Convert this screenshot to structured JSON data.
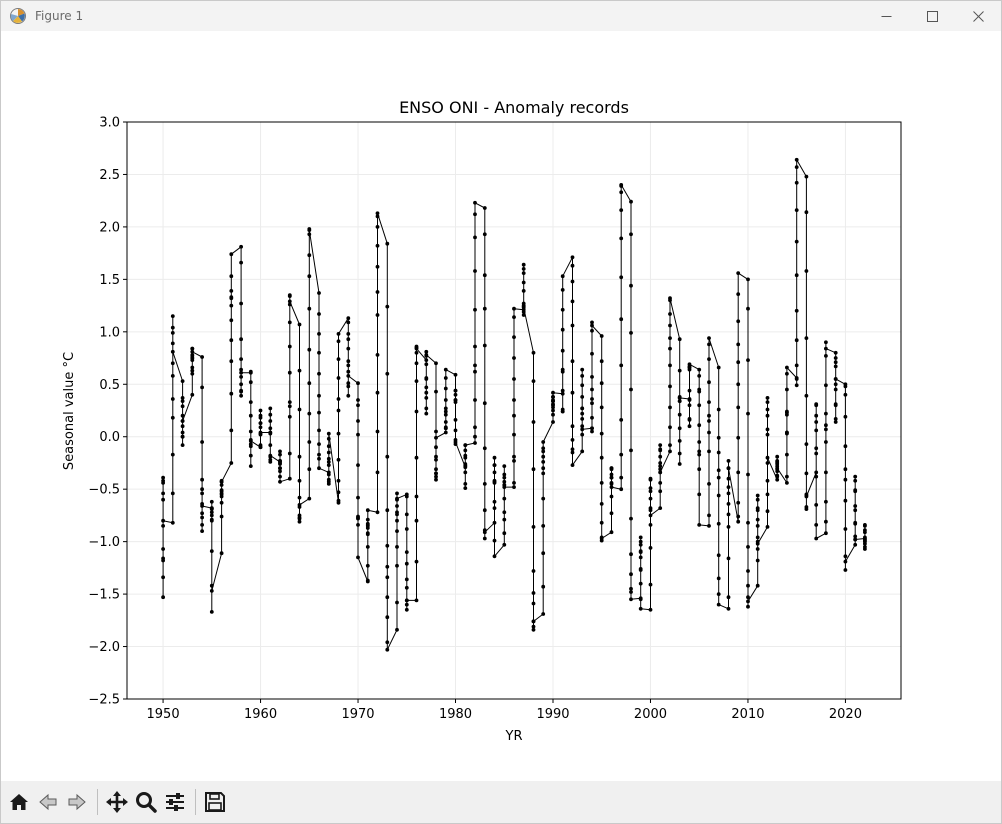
{
  "window": {
    "title": "Figure 1",
    "minimize_glyph": "—",
    "maximize_glyph": "☐",
    "close_glyph": "✕"
  },
  "toolbar": {
    "buttons": [
      {
        "name": "home-icon",
        "tooltip": "Home"
      },
      {
        "name": "back-icon",
        "tooltip": "Back"
      },
      {
        "name": "forward-icon",
        "tooltip": "Forward"
      },
      {
        "name": "pan-icon",
        "tooltip": "Pan"
      },
      {
        "name": "zoom-icon",
        "tooltip": "Zoom"
      },
      {
        "name": "configure-icon",
        "tooltip": "Configure subplots"
      },
      {
        "name": "save-icon",
        "tooltip": "Save"
      }
    ]
  },
  "chart_data": {
    "type": "line",
    "title": "ENSO ONI - Anomaly records",
    "xlabel": "YR",
    "ylabel": "Seasonal value °C",
    "xlim": [
      1946.3,
      2025.7
    ],
    "ylim": [
      -2.5,
      3.0
    ],
    "xticks": [
      1950,
      1960,
      1970,
      1980,
      1990,
      2000,
      2010,
      2020
    ],
    "yticks": [
      -2.5,
      -2.0,
      -1.5,
      -1.0,
      -0.5,
      0.0,
      0.5,
      1.0,
      1.5,
      2.0,
      2.5,
      3.0
    ],
    "ytick_labels": [
      "−2.5",
      "−2.0",
      "−1.5",
      "−1.0",
      "−0.5",
      "0.0",
      "0.5",
      "1.0",
      "1.5",
      "2.0",
      "2.5",
      "3.0"
    ],
    "grid": true,
    "line_color": "#000000",
    "marker": "circle",
    "x_is_year": true,
    "years": [
      1950,
      1951,
      1952,
      1953,
      1954,
      1955,
      1956,
      1957,
      1958,
      1959,
      1960,
      1961,
      1962,
      1963,
      1964,
      1965,
      1966,
      1967,
      1968,
      1969,
      1970,
      1971,
      1972,
      1973,
      1974,
      1975,
      1976,
      1977,
      1978,
      1979,
      1980,
      1981,
      1982,
      1983,
      1984,
      1985,
      1986,
      1987,
      1988,
      1989,
      1990,
      1991,
      1992,
      1993,
      1994,
      1995,
      1996,
      1997,
      1998,
      1999,
      2000,
      2001,
      2002,
      2003,
      2004,
      2005,
      2006,
      2007,
      2008,
      2009,
      2010,
      2011,
      2012,
      2013,
      2014,
      2015,
      2016,
      2017,
      2018,
      2019,
      2020,
      2021,
      2022
    ],
    "seasonal_values": [
      [
        -1.53,
        -1.34,
        -1.16,
        -1.18,
        -1.07,
        -0.85,
        -0.54,
        -0.42,
        -0.39,
        -0.44,
        -0.6,
        -0.8
      ],
      [
        -0.82,
        -0.54,
        -0.17,
        0.18,
        0.36,
        0.58,
        0.7,
        0.89,
        0.99,
        1.15,
        1.04,
        0.81
      ],
      [
        0.53,
        0.37,
        0.34,
        0.29,
        0.2,
        0.0,
        -0.08,
        0.0,
        0.15,
        0.1,
        0.04,
        0.15
      ],
      [
        0.4,
        0.6,
        0.63,
        0.66,
        0.75,
        0.77,
        0.75,
        0.73,
        0.78,
        0.84,
        0.84,
        0.81
      ],
      [
        0.76,
        0.47,
        -0.05,
        -0.41,
        -0.54,
        -0.5,
        -0.64,
        -0.84,
        -0.9,
        -0.77,
        -0.73,
        -0.66
      ],
      [
        -0.68,
        -0.62,
        -0.69,
        -0.8,
        -0.79,
        -0.72,
        -0.68,
        -0.75,
        -1.09,
        -1.42,
        -1.67,
        -1.47
      ],
      [
        -1.11,
        -0.76,
        -0.63,
        -0.54,
        -0.52,
        -0.51,
        -0.57,
        -0.55,
        -0.46,
        -0.42,
        -0.43,
        -0.43
      ],
      [
        -0.25,
        0.06,
        0.41,
        0.72,
        0.92,
        1.11,
        1.25,
        1.32,
        1.33,
        1.39,
        1.53,
        1.74
      ],
      [
        1.81,
        1.66,
        1.27,
        0.93,
        0.74,
        0.64,
        0.57,
        0.43,
        0.39,
        0.44,
        0.5,
        0.61
      ],
      [
        0.61,
        0.62,
        0.52,
        0.33,
        0.2,
        -0.07,
        -0.18,
        -0.28,
        -0.09,
        -0.03,
        0.05,
        -0.04
      ],
      [
        -0.1,
        -0.1,
        -0.08,
        0.02,
        0.09,
        0.03,
        0.13,
        0.18,
        0.25,
        0.2,
        0.13,
        0.04
      ],
      [
        0.04,
        0.03,
        0.04,
        0.08,
        0.21,
        0.27,
        0.15,
        -0.08,
        -0.22,
        -0.24,
        -0.19,
        -0.18
      ],
      [
        -0.24,
        -0.23,
        -0.23,
        -0.3,
        -0.3,
        -0.26,
        -0.14,
        -0.17,
        -0.25,
        -0.33,
        -0.38,
        -0.43
      ],
      [
        -0.4,
        -0.16,
        0.19,
        0.29,
        0.33,
        0.61,
        0.86,
        1.09,
        1.26,
        1.35,
        1.34,
        1.29
      ],
      [
        1.07,
        0.63,
        0.26,
        -0.19,
        -0.42,
        -0.58,
        -0.67,
        -0.75,
        -0.81,
        -0.78,
        -0.77,
        -0.65
      ],
      [
        -0.59,
        -0.31,
        -0.05,
        0.22,
        0.51,
        0.83,
        1.22,
        1.53,
        1.73,
        1.93,
        1.98,
        1.97
      ],
      [
        1.37,
        1.17,
        0.98,
        0.8,
        0.6,
        0.39,
        0.23,
        0.06,
        -0.07,
        -0.17,
        -0.21,
        -0.3
      ],
      [
        -0.34,
        -0.41,
        -0.43,
        -0.45,
        -0.36,
        -0.27,
        -0.24,
        -0.21,
        -0.15,
        -0.09,
        -0.02,
        0.03
      ],
      [
        -0.63,
        -0.61,
        -0.53,
        -0.42,
        -0.22,
        0.03,
        0.25,
        0.36,
        0.56,
        0.74,
        0.91,
        0.98
      ],
      [
        1.13,
        1.09,
        0.98,
        0.93,
        0.84,
        0.68,
        0.51,
        0.39,
        0.48,
        0.62,
        0.72,
        0.58
      ],
      [
        0.51,
        0.35,
        0.3,
        0.15,
        0.02,
        -0.27,
        -0.58,
        -0.76,
        -0.84,
        -0.77,
        -0.78,
        -1.15
      ],
      [
        -1.38,
        -1.37,
        -1.23,
        -1.05,
        -0.93,
        -0.83,
        -0.84,
        -0.92,
        -0.87,
        -0.85,
        -0.79,
        -0.7
      ],
      [
        -0.72,
        -0.34,
        0.05,
        0.42,
        0.78,
        1.16,
        1.38,
        1.62,
        1.82,
        2.0,
        2.1,
        2.13
      ],
      [
        1.84,
        1.24,
        0.6,
        -0.19,
        -0.7,
        -1.04,
        -1.24,
        -1.34,
        -1.53,
        -1.72,
        -1.96,
        -2.03
      ],
      [
        -1.84,
        -1.58,
        -1.23,
        -1.05,
        -0.9,
        -0.8,
        -0.6,
        -0.54,
        -0.66,
        -0.74,
        -0.72,
        -0.59
      ],
      [
        -0.55,
        -0.57,
        -0.74,
        -0.88,
        -1.1,
        -1.21,
        -1.36,
        -1.44,
        -1.56,
        -1.65,
        -1.6,
        -1.56
      ],
      [
        -1.56,
        -1.19,
        -0.8,
        -0.57,
        -0.2,
        0.24,
        0.53,
        0.7,
        0.8,
        0.85,
        0.86,
        0.84
      ],
      [
        0.73,
        0.55,
        0.37,
        0.22,
        0.27,
        0.42,
        0.47,
        0.56,
        0.69,
        0.77,
        0.81,
        0.78
      ],
      [
        0.7,
        0.43,
        0.05,
        -0.22,
        -0.31,
        -0.35,
        -0.38,
        -0.41,
        -0.35,
        -0.19,
        -0.1,
        -0.01
      ],
      [
        0.04,
        0.08,
        0.09,
        0.08,
        0.14,
        0.27,
        0.24,
        0.21,
        0.35,
        0.46,
        0.56,
        0.64
      ],
      [
        0.59,
        0.44,
        0.35,
        0.35,
        0.44,
        0.4,
        0.33,
        0.16,
        0.06,
        -0.03,
        -0.07,
        -0.05
      ],
      [
        -0.29,
        -0.49,
        -0.45,
        -0.34,
        -0.27,
        -0.2,
        -0.26,
        -0.28,
        -0.18,
        -0.13,
        -0.08,
        -0.08
      ],
      [
        -0.06,
        0.0,
        0.09,
        0.35,
        0.62,
        0.68,
        0.86,
        1.21,
        1.58,
        1.9,
        2.12,
        2.23
      ],
      [
        2.18,
        1.93,
        1.54,
        1.22,
        0.87,
        0.32,
        -0.11,
        -0.45,
        -0.7,
        -0.89,
        -0.97,
        -0.91
      ],
      [
        -0.82,
        -0.68,
        -0.44,
        -0.43,
        -0.34,
        -0.27,
        -0.27,
        -0.2,
        -0.42,
        -0.62,
        -0.99,
        -1.14
      ],
      [
        -1.03,
        -0.92,
        -0.79,
        -0.72,
        -0.59,
        -0.46,
        -0.46,
        -0.43,
        -0.36,
        -0.28,
        -0.39,
        -0.48
      ],
      [
        -0.48,
        -0.44,
        -0.23,
        -0.19,
        0.02,
        0.2,
        0.35,
        0.55,
        0.75,
        0.95,
        1.14,
        1.22
      ],
      [
        1.21,
        1.27,
        1.25,
        1.19,
        1.16,
        1.24,
        1.39,
        1.6,
        1.64,
        1.56,
        1.47,
        1.23
      ],
      [
        0.8,
        0.53,
        0.14,
        -0.31,
        -0.86,
        -1.28,
        -1.49,
        -1.59,
        -1.76,
        -1.84,
        -1.81,
        -1.76
      ],
      [
        -1.69,
        -1.43,
        -1.11,
        -0.85,
        -0.59,
        -0.35,
        -0.3,
        -0.24,
        -0.19,
        -0.14,
        -0.11,
        -0.05
      ],
      [
        0.14,
        0.21,
        0.28,
        0.3,
        0.25,
        0.31,
        0.34,
        0.35,
        0.38,
        0.34,
        0.38,
        0.42
      ],
      [
        0.41,
        0.26,
        0.24,
        0.24,
        0.44,
        0.62,
        0.64,
        0.82,
        1.02,
        1.21,
        1.4,
        1.53
      ],
      [
        1.71,
        1.63,
        1.48,
        1.29,
        1.06,
        0.72,
        0.42,
        0.1,
        -0.03,
        -0.12,
        -0.15,
        -0.27
      ],
      [
        -0.14,
        0.02,
        0.22,
        0.49,
        0.64,
        0.58,
        0.38,
        0.27,
        0.27,
        0.17,
        0.1,
        0.07
      ],
      [
        0.08,
        0.05,
        0.08,
        0.18,
        0.32,
        0.36,
        0.45,
        0.57,
        0.79,
        1.01,
        1.09,
        1.06
      ],
      [
        0.96,
        0.72,
        0.51,
        0.28,
        0.03,
        -0.2,
        -0.44,
        -0.64,
        -0.82,
        -0.96,
        -0.99,
        -0.97
      ],
      [
        -0.91,
        -0.73,
        -0.57,
        -0.39,
        -0.3,
        -0.31,
        -0.3,
        -0.36,
        -0.39,
        -0.44,
        -0.45,
        -0.48
      ],
      [
        -0.5,
        -0.39,
        -0.17,
        0.16,
        0.68,
        1.12,
        1.52,
        1.89,
        2.16,
        2.33,
        2.39,
        2.4
      ],
      [
        2.24,
        1.93,
        1.44,
        0.99,
        0.45,
        -0.13,
        -0.78,
        -1.12,
        -1.31,
        -1.45,
        -1.48,
        -1.55
      ],
      [
        -1.54,
        -1.26,
        -1.0,
        -0.96,
        -1.03,
        -1.09,
        -1.1,
        -1.15,
        -1.27,
        -1.4,
        -1.55,
        -1.64
      ],
      [
        -1.65,
        -1.41,
        -1.06,
        -0.84,
        -0.68,
        -0.52,
        -0.41,
        -0.4,
        -0.49,
        -0.59,
        -0.7,
        -0.75
      ],
      [
        -0.68,
        -0.52,
        -0.44,
        -0.34,
        -0.25,
        -0.12,
        -0.08,
        -0.13,
        -0.19,
        -0.28,
        -0.31,
        -0.34
      ],
      [
        -0.14,
        -0.08,
        0.09,
        0.28,
        0.48,
        0.68,
        0.84,
        0.94,
        1.06,
        1.17,
        1.3,
        1.32
      ],
      [
        0.93,
        0.63,
        0.38,
        -0.04,
        -0.26,
        -0.16,
        0.08,
        0.21,
        0.34,
        0.37,
        0.34,
        0.37
      ],
      [
        0.36,
        0.35,
        0.17,
        0.1,
        0.16,
        0.3,
        0.44,
        0.64,
        0.67,
        0.66,
        0.66,
        0.69
      ],
      [
        0.64,
        0.58,
        0.45,
        0.43,
        0.3,
        0.11,
        -0.05,
        -0.17,
        -0.14,
        -0.31,
        -0.55,
        -0.84
      ],
      [
        -0.85,
        -0.75,
        -0.45,
        -0.14,
        0.04,
        0.15,
        0.2,
        0.33,
        0.52,
        0.74,
        0.88,
        0.94
      ],
      [
        0.66,
        0.26,
        -0.01,
        -0.15,
        -0.32,
        -0.39,
        -0.56,
        -0.83,
        -1.13,
        -1.35,
        -1.5,
        -1.6
      ],
      [
        -1.64,
        -1.53,
        -1.16,
        -0.86,
        -0.74,
        -0.64,
        -0.54,
        -0.48,
        -0.4,
        -0.3,
        -0.23,
        -0.3
      ],
      [
        -0.81,
        -0.76,
        -0.63,
        -0.34,
        -0.01,
        0.28,
        0.5,
        0.71,
        0.88,
        1.1,
        1.36,
        1.56
      ],
      [
        1.5,
        1.22,
        0.73,
        0.22,
        -0.36,
        -0.82,
        -1.05,
        -1.28,
        -1.42,
        -1.53,
        -1.62,
        -1.57
      ],
      [
        -1.42,
        -1.18,
        -0.96,
        -0.79,
        -0.7,
        -0.6,
        -0.56,
        -0.68,
        -0.85,
        -1.0,
        -1.07,
        -1.02
      ],
      [
        -0.86,
        -0.71,
        -0.55,
        -0.42,
        -0.25,
        0.02,
        0.2,
        0.33,
        0.37,
        0.26,
        0.07,
        -0.2
      ],
      [
        -0.41,
        -0.37,
        -0.28,
        -0.24,
        -0.26,
        -0.25,
        -0.33,
        -0.38,
        -0.31,
        -0.19,
        -0.23,
        -0.3
      ],
      [
        -0.44,
        -0.38,
        -0.17,
        0.04,
        0.23,
        0.21,
        0.04,
        0.03,
        0.24,
        0.45,
        0.6,
        0.66
      ],
      [
        0.56,
        0.49,
        0.55,
        0.68,
        0.92,
        1.2,
        1.54,
        1.86,
        2.16,
        2.42,
        2.57,
        2.64
      ],
      [
        2.48,
        2.14,
        1.58,
        0.94,
        0.39,
        -0.07,
        -0.35,
        -0.55,
        -0.69,
        -0.67,
        -0.56,
        -0.57
      ],
      [
        -0.34,
        -0.16,
        0.06,
        0.2,
        0.31,
        0.3,
        0.14,
        -0.11,
        -0.38,
        -0.65,
        -0.84,
        -0.97
      ],
      [
        -0.92,
        -0.81,
        -0.62,
        -0.34,
        -0.05,
        0.07,
        0.11,
        0.22,
        0.49,
        0.77,
        0.9,
        0.84
      ],
      [
        0.8,
        0.75,
        0.71,
        0.67,
        0.55,
        0.45,
        0.31,
        0.14,
        0.17,
        0.3,
        0.5,
        0.55
      ],
      [
        0.5,
        0.48,
        0.4,
        0.19,
        -0.09,
        -0.31,
        -0.41,
        -0.61,
        -0.88,
        -1.14,
        -1.27,
        -1.19
      ],
      [
        -1.03,
        -0.98,
        -0.83,
        -0.66,
        -0.51,
        -0.42,
        -0.38,
        -0.52,
        -0.7,
        -0.82,
        -0.95,
        -0.98
      ],
      [
        -0.97,
        -1.05,
        -1.0,
        -1.07,
        -0.99,
        -0.89,
        -0.85,
        -0.91,
        -0.98,
        -1.02,
        -0.96,
        -0.84
      ]
    ]
  }
}
